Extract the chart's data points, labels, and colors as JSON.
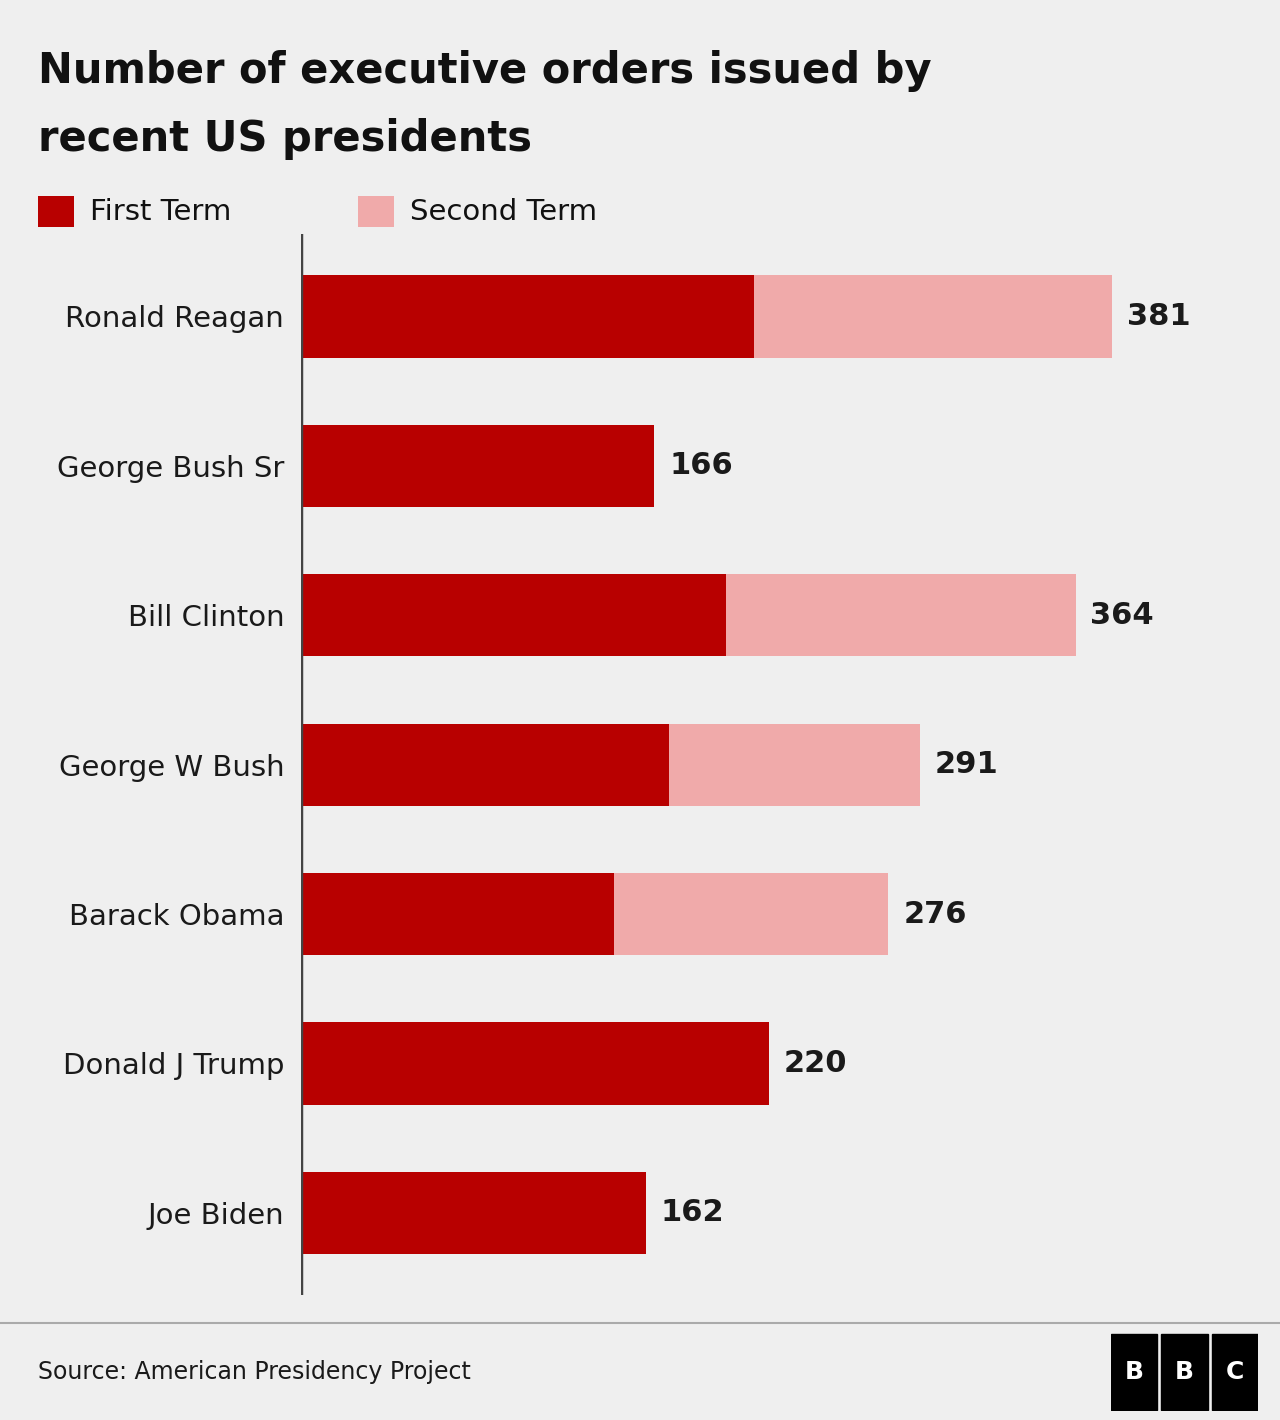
{
  "title_line1": "Number of executive orders issued by",
  "title_line2": "recent US presidents",
  "source": "Source: American Presidency Project",
  "presidents": [
    "Ronald Reagan",
    "George Bush Sr",
    "Bill Clinton",
    "George W Bush",
    "Barack Obama",
    "Donald J Trump",
    "Joe Biden"
  ],
  "first_term": [
    213,
    166,
    200,
    173,
    147,
    220,
    162
  ],
  "second_term": [
    168,
    0,
    164,
    118,
    129,
    0,
    0
  ],
  "totals": [
    381,
    166,
    364,
    291,
    276,
    220,
    162
  ],
  "color_first": "#b80000",
  "color_second": "#f0aaaa",
  "background_color": "#efefef",
  "footer_bg_color": "#e4e4e4",
  "bar_height": 0.55,
  "title_fontsize": 30,
  "label_fontsize": 21,
  "value_fontsize": 22,
  "source_fontsize": 17,
  "legend_fontsize": 21,
  "xlim_max": 430
}
